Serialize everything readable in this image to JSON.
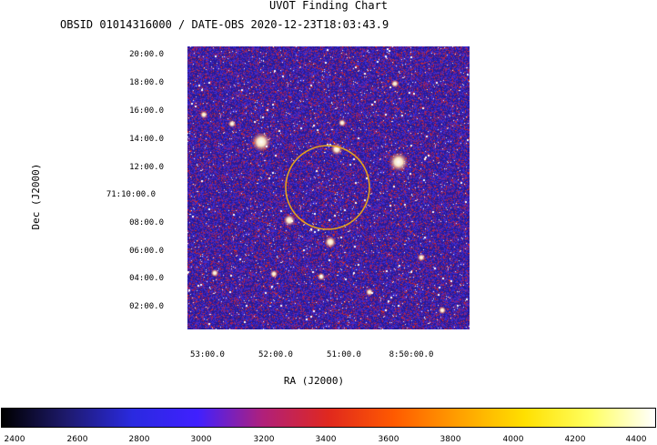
{
  "header": {
    "title": "UVOT Finding Chart",
    "subtitle": "OBSID 01014316000 / DATE-OBS 2020-12-23T18:03:43.9"
  },
  "axes": {
    "xlabel": "RA (J2000)",
    "ylabel": "Dec (J2000)",
    "y_ticks": [
      "20:00.0",
      "18:00.0",
      "16:00.0",
      "14:00.0",
      "12:00.0",
      "71:10:00.0",
      "08:00.0",
      "06:00.0",
      "04:00.0",
      "02:00.0"
    ],
    "x_ticks": [
      "53:00.0",
      "52:00.0",
      "51:00.0",
      "8:50:00.0"
    ]
  },
  "image": {
    "description_colors": [
      "#2a1a8f",
      "#3b28c8",
      "#d62a10",
      "#ffffff"
    ],
    "target_circle_color": "#e0a020"
  },
  "colorbar": {
    "ticks": [
      "2400",
      "2600",
      "2800",
      "3000",
      "3200",
      "3400",
      "3600",
      "3800",
      "4000",
      "4200",
      "4400"
    ],
    "stops": [
      "#000000",
      "#1e1a6e",
      "#2a2ae0",
      "#4020ff",
      "#b0207a",
      "#e0281e",
      "#ff5a00",
      "#ffa000",
      "#ffe000",
      "#ffff60",
      "#ffffff"
    ]
  }
}
